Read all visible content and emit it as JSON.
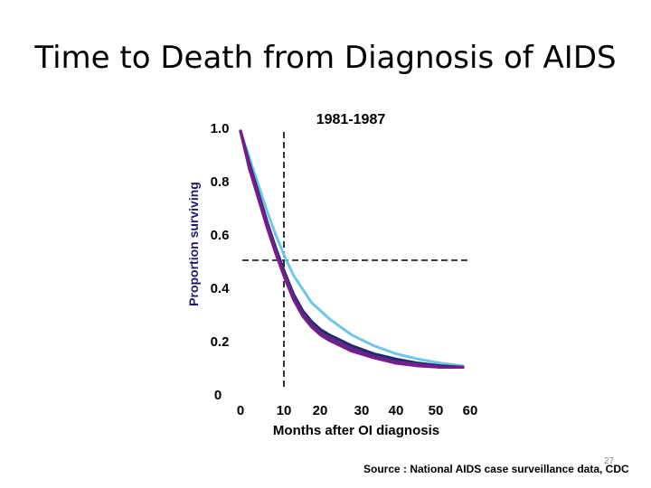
{
  "slide": {
    "title": "Time to Death from Diagnosis of AIDS",
    "source": "Source : National AIDS case surveillance data, CDC",
    "page_number": "27"
  },
  "chart_data": {
    "type": "line",
    "annotation": "1981-1987",
    "xlabel": "Months after OI diagnosis",
    "ylabel": "Proportion surviving",
    "xlim": [
      0,
      60
    ],
    "ylim": [
      0,
      1.0
    ],
    "x_ticks": [
      "0",
      "10",
      "20",
      "30",
      "40",
      "50",
      "60"
    ],
    "y_ticks": [
      "0",
      "0.2",
      "0.4",
      "0.6",
      "0.8",
      "1.0"
    ],
    "reference_lines": {
      "x": 10,
      "y": 0.5
    },
    "series": [
      {
        "color": "#6ec6e6",
        "x": [
          0,
          2,
          4,
          6,
          8,
          10,
          12,
          14,
          16,
          18,
          20,
          25,
          30,
          35,
          40,
          45,
          50
        ],
        "y": [
          1.0,
          0.9,
          0.8,
          0.7,
          0.61,
          0.53,
          0.46,
          0.41,
          0.36,
          0.33,
          0.3,
          0.24,
          0.2,
          0.17,
          0.15,
          0.135,
          0.125
        ]
      },
      {
        "color": "#1f2a6e",
        "x": [
          0,
          2,
          4,
          6,
          8,
          10,
          12,
          14,
          16,
          18,
          20,
          25,
          30,
          35,
          40,
          45,
          50
        ],
        "y": [
          1.0,
          0.88,
          0.77,
          0.66,
          0.56,
          0.47,
          0.39,
          0.33,
          0.29,
          0.26,
          0.24,
          0.2,
          0.17,
          0.15,
          0.135,
          0.125,
          0.12
        ]
      },
      {
        "color": "#5a2d82",
        "x": [
          0,
          2,
          4,
          6,
          8,
          10,
          12,
          14,
          16,
          18,
          20,
          25,
          30,
          35,
          40,
          45,
          50
        ],
        "y": [
          1.0,
          0.87,
          0.76,
          0.65,
          0.55,
          0.46,
          0.38,
          0.32,
          0.28,
          0.25,
          0.23,
          0.19,
          0.16,
          0.14,
          0.13,
          0.12,
          0.12
        ]
      },
      {
        "color": "#7a1a8c",
        "x": [
          0,
          2,
          4,
          6,
          8,
          10,
          12,
          14,
          16,
          18,
          20,
          25,
          30,
          35,
          40,
          45,
          50
        ],
        "y": [
          1.0,
          0.86,
          0.75,
          0.64,
          0.54,
          0.45,
          0.37,
          0.31,
          0.27,
          0.24,
          0.22,
          0.18,
          0.155,
          0.135,
          0.125,
          0.12,
          0.12
        ]
      }
    ]
  }
}
